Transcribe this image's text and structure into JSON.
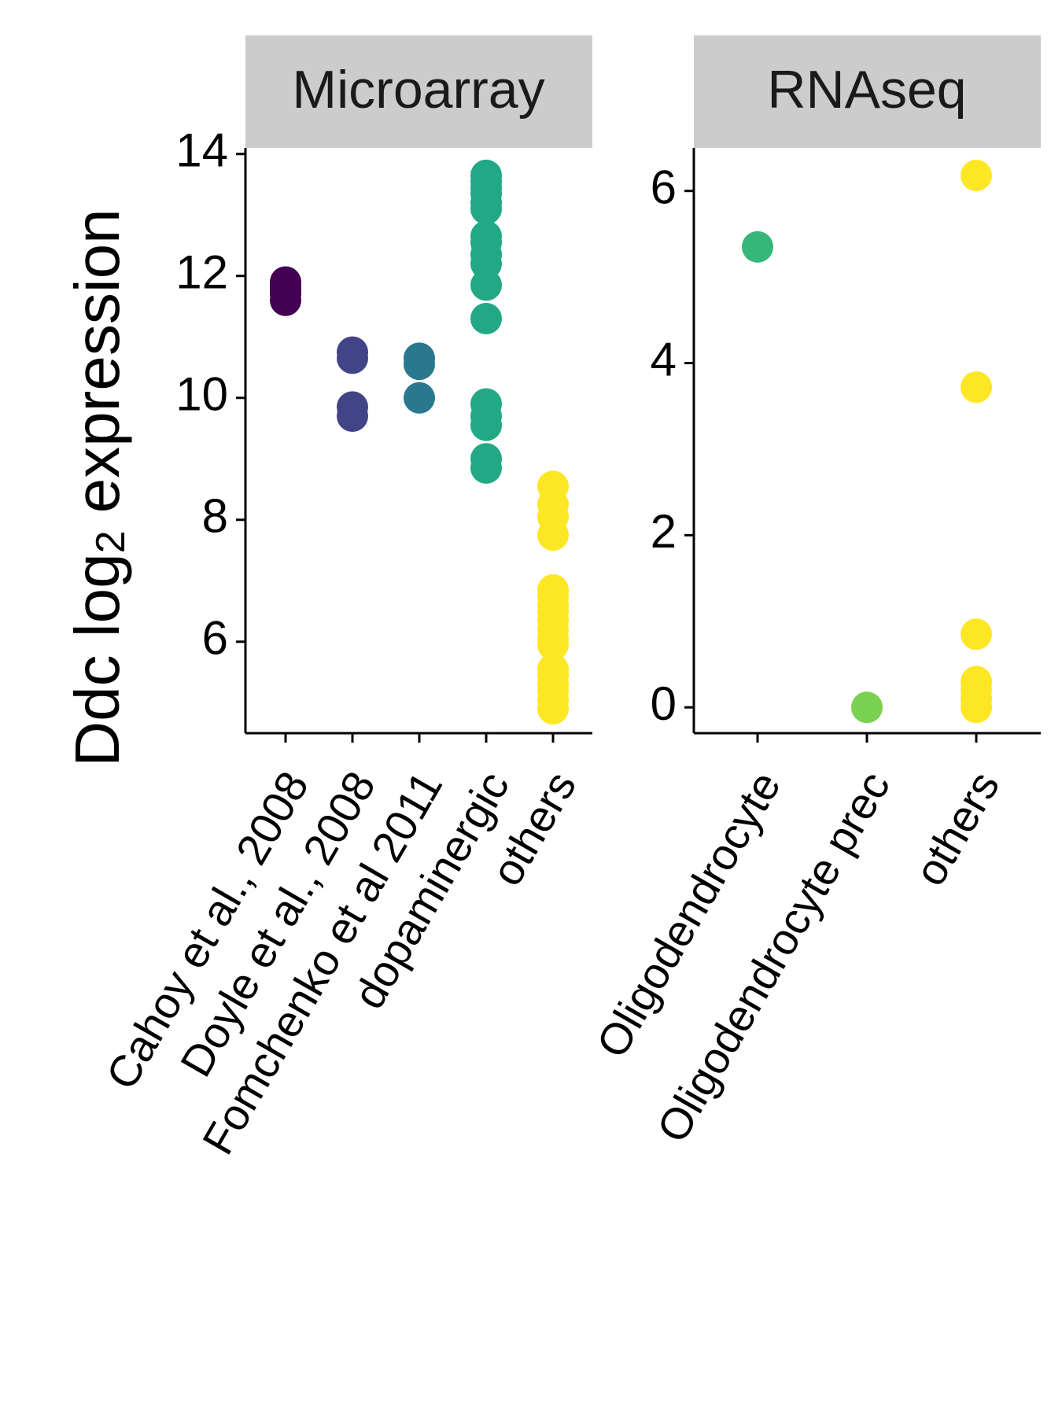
{
  "chart_data": {
    "type": "scatter",
    "ylabel": {
      "prefix": "Ddc  log",
      "subscript": "2",
      "suffix": "  expression"
    },
    "panels": [
      {
        "title": "Microarray",
        "ylim": [
          4.5,
          14.1
        ],
        "yticks": [
          6,
          8,
          10,
          12,
          14
        ],
        "categories": [
          {
            "label": "Cahoy et al., 2008",
            "color": "#440154",
            "values": [
              11.6,
              11.7,
              11.75,
              11.8,
              11.85,
              11.9
            ]
          },
          {
            "label": "Doyle et al., 2008",
            "color": "#414487",
            "values": [
              9.7,
              9.85,
              10.65,
              10.75
            ]
          },
          {
            "label": "Fomchenko et al 2011",
            "color": "#2a788e",
            "values": [
              10.0,
              10.55,
              10.65
            ]
          },
          {
            "label": "dopaminergic",
            "color": "#22a884",
            "values": [
              8.85,
              9.0,
              9.55,
              9.7,
              9.9,
              11.3,
              11.85,
              12.2,
              12.35,
              12.55,
              12.65,
              13.1,
              13.2,
              13.35,
              13.45,
              13.55,
              13.65
            ]
          },
          {
            "label": "others",
            "color": "#fde725",
            "values": [
              4.9,
              5.05,
              5.2,
              5.3,
              5.45,
              5.55,
              5.95,
              6.05,
              6.2,
              6.35,
              6.5,
              6.6,
              6.75,
              6.85,
              7.75,
              8.05,
              8.25,
              8.55
            ]
          }
        ]
      },
      {
        "title": "RNAseq",
        "ylim": [
          -0.3,
          6.5
        ],
        "yticks": [
          0,
          2,
          4,
          6
        ],
        "categories": [
          {
            "label": "Oligodendrocyte",
            "color": "#35b779",
            "values": [
              5.35
            ]
          },
          {
            "label": "Oligodendrocyte prec",
            "color": "#7ad151",
            "values": [
              0.0
            ]
          },
          {
            "label": "others",
            "color": "#fde725",
            "values": [
              0.0,
              0.1,
              0.2,
              0.3,
              0.85,
              3.72,
              6.18
            ]
          }
        ]
      }
    ]
  }
}
